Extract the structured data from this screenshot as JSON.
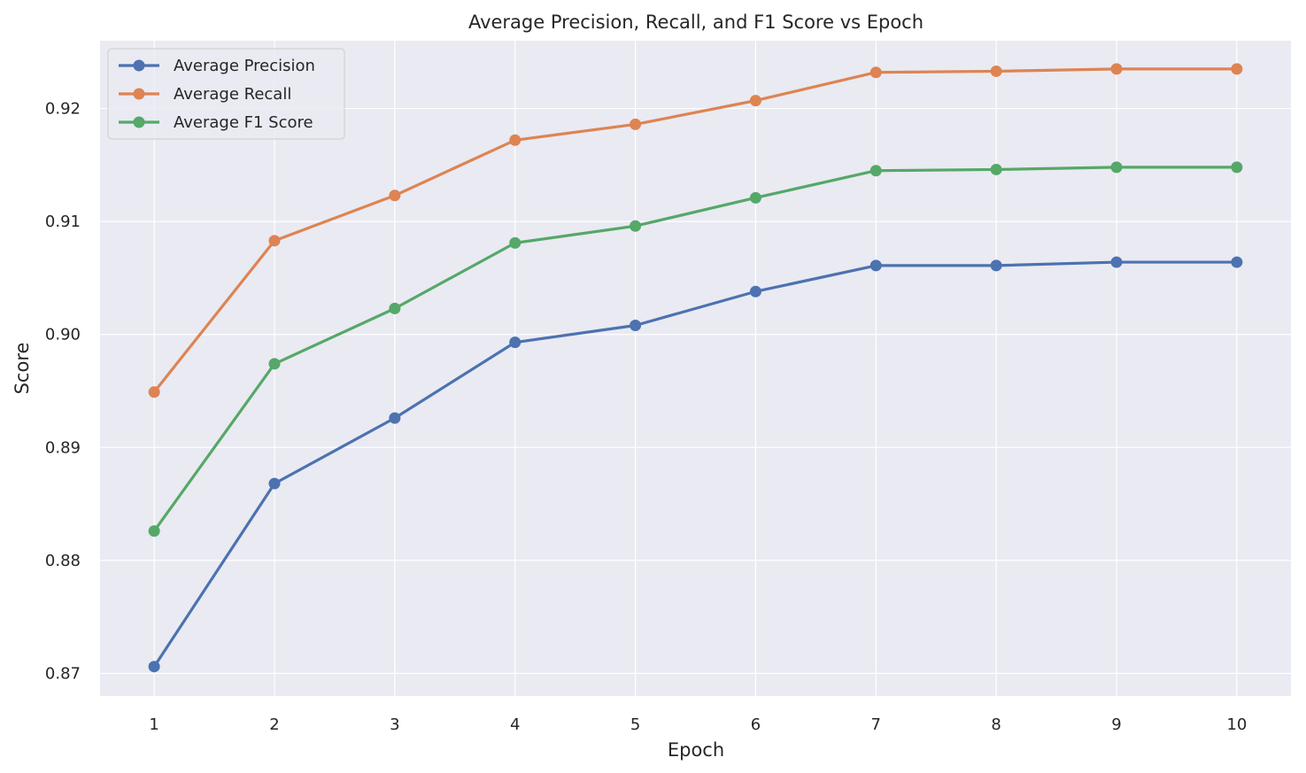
{
  "chart_data": {
    "type": "line",
    "title": "Average Precision, Recall, and F1 Score vs Epoch",
    "xlabel": "Epoch",
    "ylabel": "Score",
    "x": [
      1,
      2,
      3,
      4,
      5,
      6,
      7,
      8,
      9,
      10
    ],
    "xticks": [
      "1",
      "2",
      "3",
      "4",
      "5",
      "6",
      "7",
      "8",
      "9",
      "10"
    ],
    "yticks": [
      "0.87",
      "0.88",
      "0.89",
      "0.90",
      "0.91",
      "0.92"
    ],
    "ytick_values": [
      0.87,
      0.88,
      0.89,
      0.9,
      0.91,
      0.92
    ],
    "xlim": [
      0.55,
      10.45
    ],
    "ylim": [
      0.868,
      0.926
    ],
    "grid": true,
    "legend_position": "top-left",
    "series": [
      {
        "name": "Average Precision",
        "color": "#4c72b0",
        "values": [
          0.8706,
          0.8868,
          0.8926,
          0.8993,
          0.9008,
          0.9038,
          0.9061,
          0.9061,
          0.9064,
          0.9064
        ]
      },
      {
        "name": "Average Recall",
        "color": "#dd8452",
        "values": [
          0.8949,
          0.9083,
          0.9123,
          0.9172,
          0.9186,
          0.9207,
          0.9232,
          0.9233,
          0.9235,
          0.9235
        ]
      },
      {
        "name": "Average F1 Score",
        "color": "#55a868",
        "values": [
          0.8826,
          0.8974,
          0.9023,
          0.9081,
          0.9096,
          0.9121,
          0.9145,
          0.9146,
          0.9148,
          0.9148
        ]
      }
    ]
  }
}
